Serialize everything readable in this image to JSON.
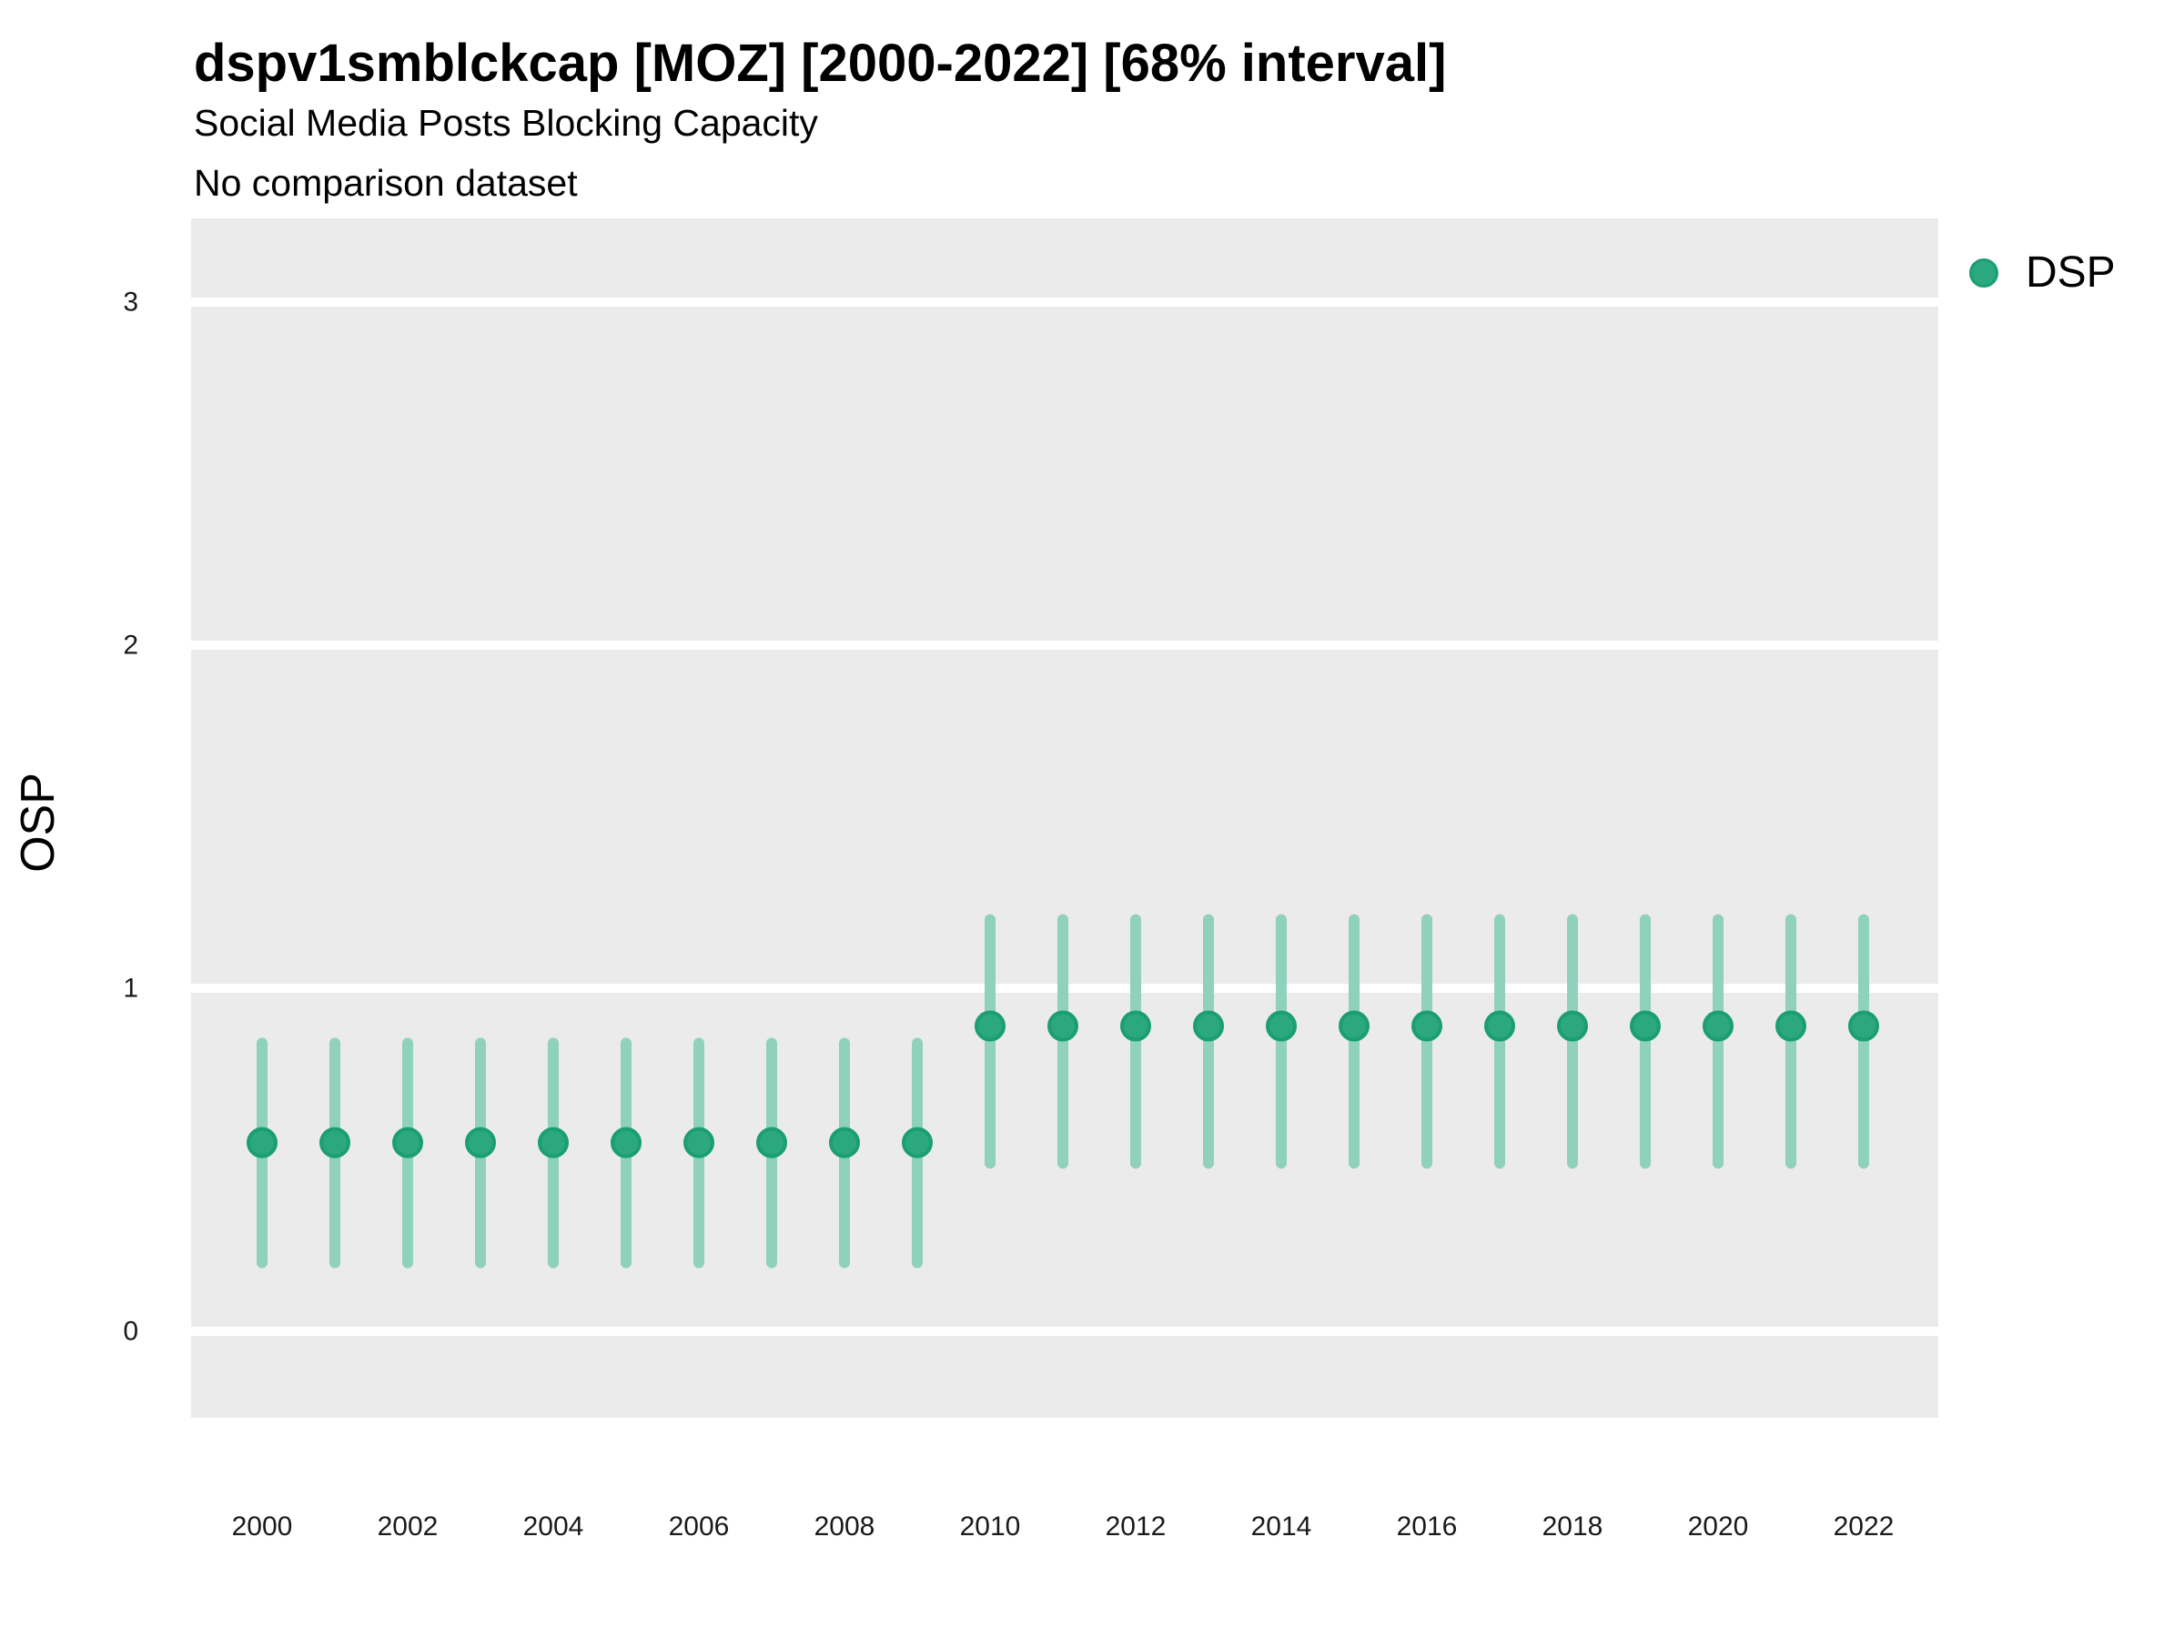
{
  "header": {
    "title": "dspv1smblckcap [MOZ] [2000-2022] [68% interval]",
    "subtitle": "Social Media Posts Blocking Capacity",
    "note": "No comparison dataset"
  },
  "colors": {
    "panel_background": "#EBEBEB",
    "gridline": "#FFFFFF",
    "point_fill": "#2BA87E",
    "point_stroke": "#1B9E72",
    "interval_line": "#8FD1BB",
    "tick_text": "#1A1A1A",
    "title_text": "#000000"
  },
  "chart_data": {
    "type": "scatter",
    "subtype": "pointrange",
    "title": "dspv1smblckcap [MOZ] [2000-2022] [68% interval]",
    "subtitle": "Social Media Posts Blocking Capacity",
    "note": "No comparison dataset",
    "xlabel": "",
    "ylabel": "OSP",
    "interval_level": "68%",
    "x_ticks": [
      2000,
      2002,
      2004,
      2006,
      2008,
      2010,
      2012,
      2014,
      2016,
      2018,
      2020,
      2022
    ],
    "y_ticks": [
      0,
      1,
      2,
      3
    ],
    "xlim": [
      1999,
      2023
    ],
    "ylim": [
      -0.25,
      3.25
    ],
    "grid": "horizontal major gridlines only, white on gray panel",
    "legend": {
      "position": "right-top",
      "entries": [
        {
          "label": "DSP",
          "color": "#2BA87E"
        }
      ]
    },
    "series": [
      {
        "name": "DSP",
        "points": [
          {
            "year": 2000,
            "value": 0.55,
            "lo": 0.2,
            "hi": 0.84
          },
          {
            "year": 2001,
            "value": 0.55,
            "lo": 0.2,
            "hi": 0.84
          },
          {
            "year": 2002,
            "value": 0.55,
            "lo": 0.2,
            "hi": 0.84
          },
          {
            "year": 2003,
            "value": 0.55,
            "lo": 0.2,
            "hi": 0.84
          },
          {
            "year": 2004,
            "value": 0.55,
            "lo": 0.2,
            "hi": 0.84
          },
          {
            "year": 2005,
            "value": 0.55,
            "lo": 0.2,
            "hi": 0.84
          },
          {
            "year": 2006,
            "value": 0.55,
            "lo": 0.2,
            "hi": 0.84
          },
          {
            "year": 2007,
            "value": 0.55,
            "lo": 0.2,
            "hi": 0.84
          },
          {
            "year": 2008,
            "value": 0.55,
            "lo": 0.2,
            "hi": 0.84
          },
          {
            "year": 2009,
            "value": 0.55,
            "lo": 0.2,
            "hi": 0.84
          },
          {
            "year": 2010,
            "value": 0.89,
            "lo": 0.49,
            "hi": 1.2
          },
          {
            "year": 2011,
            "value": 0.89,
            "lo": 0.49,
            "hi": 1.2
          },
          {
            "year": 2012,
            "value": 0.89,
            "lo": 0.49,
            "hi": 1.2
          },
          {
            "year": 2013,
            "value": 0.89,
            "lo": 0.49,
            "hi": 1.2
          },
          {
            "year": 2014,
            "value": 0.89,
            "lo": 0.49,
            "hi": 1.2
          },
          {
            "year": 2015,
            "value": 0.89,
            "lo": 0.49,
            "hi": 1.2
          },
          {
            "year": 2016,
            "value": 0.89,
            "lo": 0.49,
            "hi": 1.2
          },
          {
            "year": 2017,
            "value": 0.89,
            "lo": 0.49,
            "hi": 1.2
          },
          {
            "year": 2018,
            "value": 0.89,
            "lo": 0.49,
            "hi": 1.2
          },
          {
            "year": 2019,
            "value": 0.89,
            "lo": 0.49,
            "hi": 1.2
          },
          {
            "year": 2020,
            "value": 0.89,
            "lo": 0.49,
            "hi": 1.2
          },
          {
            "year": 2021,
            "value": 0.89,
            "lo": 0.49,
            "hi": 1.2
          },
          {
            "year": 2022,
            "value": 0.89,
            "lo": 0.49,
            "hi": 1.2
          }
        ]
      }
    ]
  }
}
